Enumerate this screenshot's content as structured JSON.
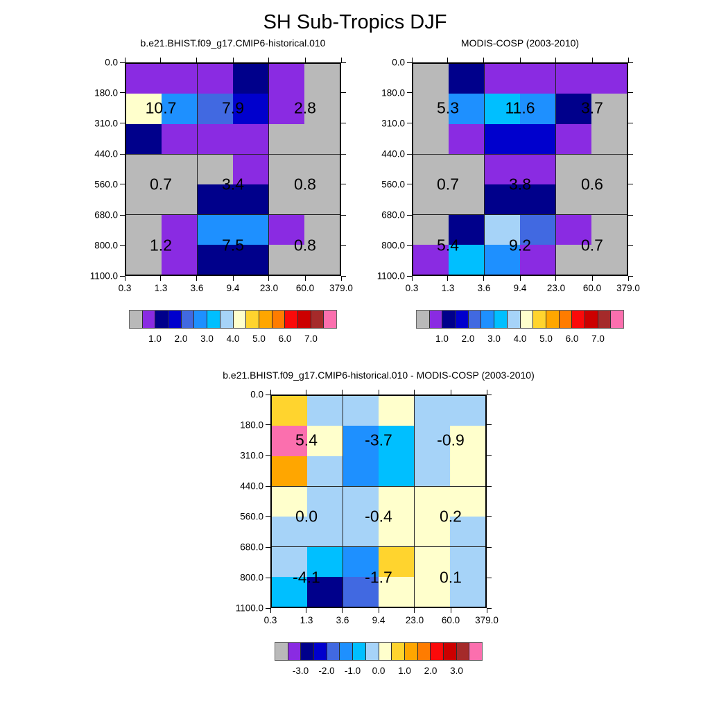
{
  "title": "SH Sub-Tropics DJF",
  "palette": {
    "gray": "#b9b9b9",
    "purple": "#8a2be2",
    "navy": "#00008b",
    "blue": "#0000cd",
    "royal": "#4169e1",
    "dodger": "#1e90ff",
    "deepsky": "#00bfff",
    "lightsky": "#a6d3f8",
    "cream": "#ffffcc",
    "yellow": "#ffd42e",
    "amber": "#ffa600",
    "orange": "#ff7c00",
    "red": "#fb0a0a",
    "darkred": "#cc0000",
    "brick": "#a52a2a",
    "pink": "#fb6fae"
  },
  "chart_data": [
    {
      "type": "heatmap",
      "title": "b.e21.BHIST.f09_g17.CMIP6-historical.010",
      "xlabel": "",
      "ylabel": "",
      "x_tick_labels": [
        "0.3",
        "1.3",
        "3.6",
        "9.4",
        "23.0",
        "60.0",
        "379.0"
      ],
      "y_tick_labels": [
        "0.0",
        "180.0",
        "310.0",
        "440.0",
        "560.0",
        "680.0",
        "800.0",
        "1100.0"
      ],
      "cells": [
        [
          "purple",
          "purple",
          "purple",
          "navy",
          "purple",
          "gray"
        ],
        [
          "cream",
          "dodger",
          "royal",
          "blue",
          "purple",
          "gray"
        ],
        [
          "navy",
          "purple",
          "purple",
          "purple",
          "gray",
          "gray"
        ],
        [
          "gray",
          "gray",
          "gray",
          "purple",
          "gray",
          "gray"
        ],
        [
          "gray",
          "gray",
          "navy",
          "navy",
          "gray",
          "gray"
        ],
        [
          "gray",
          "purple",
          "dodger",
          "dodger",
          "purple",
          "gray"
        ],
        [
          "gray",
          "purple",
          "navy",
          "navy",
          "gray",
          "gray"
        ]
      ],
      "block_values": [
        [
          "10.7",
          "7.9",
          "2.8"
        ],
        [
          "0.7",
          "3.4",
          "0.8"
        ],
        [
          "1.2",
          "7.5",
          "0.8"
        ]
      ],
      "colorbar": {
        "labels": [
          "1.0",
          "2.0",
          "3.0",
          "4.0",
          "5.0",
          "6.0",
          "7.0"
        ],
        "colors": [
          "gray",
          "purple",
          "navy",
          "blue",
          "royal",
          "dodger",
          "deepsky",
          "lightsky",
          "cream",
          "yellow",
          "amber",
          "orange",
          "red",
          "darkred",
          "brick",
          "pink"
        ]
      }
    },
    {
      "type": "heatmap",
      "title": "MODIS-COSP (2003-2010)",
      "xlabel": "",
      "ylabel": "",
      "x_tick_labels": [
        "0.3",
        "1.3",
        "3.6",
        "9.4",
        "23.0",
        "60.0",
        "379.0"
      ],
      "y_tick_labels": [
        "0.0",
        "180.0",
        "310.0",
        "440.0",
        "560.0",
        "680.0",
        "800.0",
        "1100.0"
      ],
      "cells": [
        [
          "gray",
          "navy",
          "purple",
          "purple",
          "purple",
          "purple"
        ],
        [
          "gray",
          "dodger",
          "deepsky",
          "dodger",
          "navy",
          "gray"
        ],
        [
          "gray",
          "purple",
          "blue",
          "blue",
          "purple",
          "gray"
        ],
        [
          "gray",
          "gray",
          "purple",
          "purple",
          "gray",
          "gray"
        ],
        [
          "gray",
          "gray",
          "navy",
          "navy",
          "gray",
          "gray"
        ],
        [
          "gray",
          "navy",
          "lightsky",
          "royal",
          "purple",
          "gray"
        ],
        [
          "purple",
          "deepsky",
          "dodger",
          "purple",
          "gray",
          "gray"
        ]
      ],
      "block_values": [
        [
          "5.3",
          "11.6",
          "3.7"
        ],
        [
          "0.7",
          "3.8",
          "0.6"
        ],
        [
          "5.4",
          "9.2",
          "0.7"
        ]
      ],
      "colorbar": {
        "labels": [
          "1.0",
          "2.0",
          "3.0",
          "4.0",
          "5.0",
          "6.0",
          "7.0"
        ],
        "colors": [
          "gray",
          "purple",
          "navy",
          "blue",
          "royal",
          "dodger",
          "deepsky",
          "lightsky",
          "cream",
          "yellow",
          "amber",
          "orange",
          "red",
          "darkred",
          "brick",
          "pink"
        ]
      }
    },
    {
      "type": "heatmap",
      "title": "b.e21.BHIST.f09_g17.CMIP6-historical.010 - MODIS-COSP (2003-2010)",
      "xlabel": "",
      "ylabel": "",
      "x_tick_labels": [
        "0.3",
        "1.3",
        "3.6",
        "9.4",
        "23.0",
        "60.0",
        "379.0"
      ],
      "y_tick_labels": [
        "0.0",
        "180.0",
        "310.0",
        "440.0",
        "560.0",
        "680.0",
        "800.0",
        "1100.0"
      ],
      "cells": [
        [
          "yellow",
          "lightsky",
          "lightsky",
          "cream",
          "lightsky",
          "lightsky"
        ],
        [
          "pink",
          "cream",
          "dodger",
          "deepsky",
          "lightsky",
          "cream"
        ],
        [
          "amber",
          "lightsky",
          "dodger",
          "deepsky",
          "lightsky",
          "cream"
        ],
        [
          "cream",
          "lightsky",
          "lightsky",
          "cream",
          "cream",
          "cream"
        ],
        [
          "lightsky",
          "lightsky",
          "lightsky",
          "cream",
          "cream",
          "lightsky"
        ],
        [
          "lightsky",
          "deepsky",
          "dodger",
          "yellow",
          "cream",
          "lightsky"
        ],
        [
          "deepsky",
          "navy",
          "royal",
          "cream",
          "cream",
          "lightsky"
        ]
      ],
      "block_values": [
        [
          "5.4",
          "-3.7",
          "-0.9"
        ],
        [
          "0.0",
          "-0.4",
          "0.2"
        ],
        [
          "-4.1",
          "-1.7",
          "0.1"
        ]
      ],
      "colorbar": {
        "labels": [
          "-3.0",
          "-2.0",
          "-1.0",
          "0.0",
          "1.0",
          "2.0",
          "3.0"
        ],
        "colors": [
          "gray",
          "purple",
          "navy",
          "blue",
          "royal",
          "dodger",
          "deepsky",
          "lightsky",
          "cream",
          "yellow",
          "amber",
          "orange",
          "red",
          "darkred",
          "brick",
          "pink"
        ]
      }
    }
  ]
}
